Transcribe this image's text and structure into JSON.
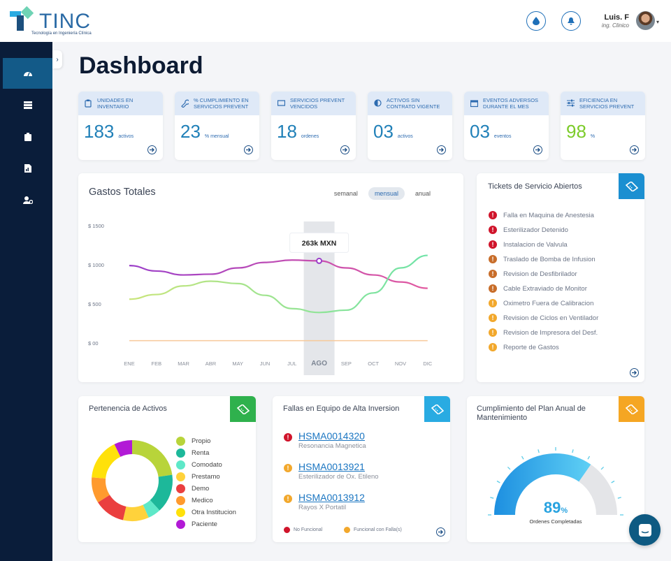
{
  "brand": {
    "name": "TINC",
    "tagline": "Tecnología en Ingeniería Clínica"
  },
  "header": {
    "user_name": "Luis. F",
    "user_role": "ing. Clinico"
  },
  "page": {
    "title": "Dashboard"
  },
  "kpis": [
    {
      "label": "Unidades en inventario",
      "value": "183",
      "unit": "activos",
      "icon": "clipboard-icon",
      "color": "#2080b8"
    },
    {
      "label": "% Cumplimiento en servicios prevent",
      "value": "23",
      "unit": "% mensual",
      "icon": "wrench-icon",
      "color": "#2080b8"
    },
    {
      "label": "Servicios prevent vencidos",
      "value": "18",
      "unit": "ordenes",
      "icon": "ticket-icon",
      "color": "#2080b8"
    },
    {
      "label": "Activos sin contrato vigente",
      "value": "03",
      "unit": "activos",
      "icon": "half-circle-icon",
      "color": "#2080b8"
    },
    {
      "label": "Eventos adversos durante el mes",
      "value": "03",
      "unit": "eventos",
      "icon": "calendar-icon",
      "color": "#2080b8"
    },
    {
      "label": "Eficiencia en servicios prevent",
      "value": "98",
      "unit": "%",
      "icon": "sliders-icon",
      "color": "#7ccb2a"
    }
  ],
  "gastos": {
    "title": "Gastos Totales",
    "tabs": [
      "semanal",
      "mensual",
      "anual"
    ],
    "active_tab": "mensual",
    "tooltip": "263k MXN"
  },
  "chart_data": {
    "type": "line",
    "categories": [
      "ENE",
      "FEB",
      "MAR",
      "ABR",
      "MAY",
      "JUN",
      "JUL",
      "AGO",
      "SEP",
      "OCT",
      "NOV",
      "DIC"
    ],
    "highlight_category": "AGO",
    "y_ticks": [
      "$ 1500",
      "$ 1000",
      "$ 500",
      "$ 00"
    ],
    "ylim": [
      0,
      1500
    ],
    "grid": false,
    "series": [
      {
        "values": [
          990,
          920,
          870,
          880,
          960,
          1030,
          1060,
          1050,
          960,
          870,
          780,
          700
        ],
        "color": "#9b3fc9",
        "color_end": "#e25aa0"
      },
      {
        "values": [
          560,
          620,
          730,
          790,
          760,
          610,
          440,
          390,
          420,
          640,
          960,
          1120
        ],
        "color": "#c9e57a",
        "color_end": "#6fe3a8"
      },
      {
        "values": [
          30,
          30,
          30,
          30,
          30,
          30,
          30,
          30,
          30,
          30,
          30,
          30
        ],
        "color": "#f7c99a"
      }
    ]
  },
  "tickets": {
    "title": "Tickets de Servicio Abiertos",
    "badge_color": "#1b8fd1",
    "items": [
      {
        "label": "Falla en Maquina de Anestesia",
        "color": "#d0142b"
      },
      {
        "label": "Esterilizador Detenido",
        "color": "#d0142b"
      },
      {
        "label": "Instalacion de Valvula",
        "color": "#d0142b"
      },
      {
        "label": "Traslado de Bomba de Infusion",
        "color": "#c86d2a"
      },
      {
        "label": "Revision de Desfibrilador",
        "color": "#c86d2a"
      },
      {
        "label": "Cable Extraviado de Monitor",
        "color": "#c86d2a"
      },
      {
        "label": "Oximetro Fuera de Calibracion",
        "color": "#f2a82c"
      },
      {
        "label": "Revision de Ciclos en Ventilador",
        "color": "#f2a82c"
      },
      {
        "label": "Revision de Impresora del Desf.",
        "color": "#f2a82c"
      },
      {
        "label": "Reporte de Gastos",
        "color": "#f2a82c"
      }
    ]
  },
  "pertenencia": {
    "title": "Pertenencia de Activos",
    "badge_color": "#2fb14d",
    "items": [
      {
        "label": "Propio",
        "color": "#b8d43a",
        "value": 22
      },
      {
        "label": "Renta",
        "color": "#1db89a",
        "value": 15
      },
      {
        "label": "Comodato",
        "color": "#5ee8c8",
        "value": 5
      },
      {
        "label": "Prestamo",
        "color": "#ffd23b",
        "value": 10
      },
      {
        "label": "Demo",
        "color": "#ea3f3f",
        "value": 12
      },
      {
        "label": "Medico",
        "color": "#ff9a2e",
        "value": 10
      },
      {
        "label": "Otra Institucion",
        "color": "#ffe10a",
        "value": 16
      },
      {
        "label": "Paciente",
        "color": "#b21ad6",
        "value": 7
      }
    ]
  },
  "fallas": {
    "title": "Fallas en Equipo de Alta Inversion",
    "badge_color": "#29abe2",
    "items": [
      {
        "code": "HSMA0014320",
        "desc": "Resonancia Magnetica",
        "color": "#d0142b"
      },
      {
        "code": "HSMA0013921",
        "desc": "Esterilizador de Ox. Etileno",
        "color": "#f2a82c"
      },
      {
        "code": "HSMA0013912",
        "desc": "Rayos X Portatil",
        "color": "#f2a82c"
      }
    ],
    "legend": [
      {
        "label": "No Funcional",
        "color": "#d0142b"
      },
      {
        "label": "Funcional con Falla(s)",
        "color": "#f2a82c"
      }
    ]
  },
  "cumplimiento": {
    "title": "Cumplimiento del Plan Anual de Mantenimiento",
    "badge_color": "#f5a623",
    "value": "89",
    "unit": "%",
    "caption": "Ordenes Completadas",
    "percent": 89
  }
}
